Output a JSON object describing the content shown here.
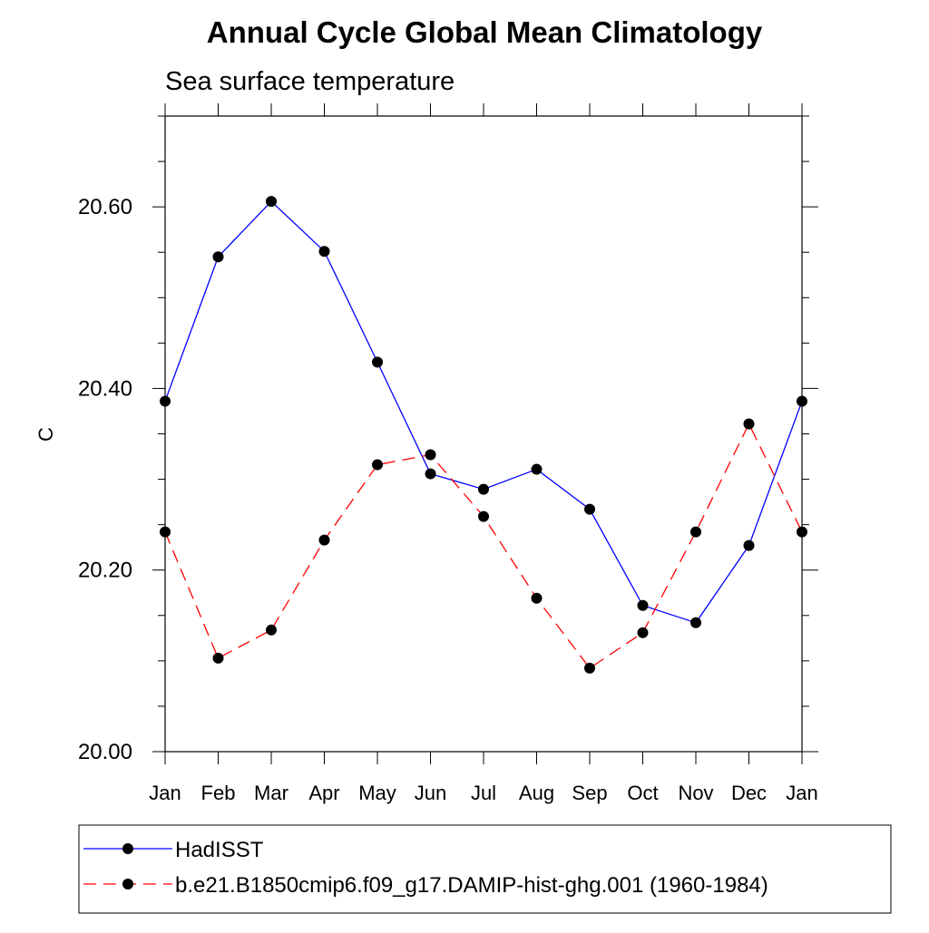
{
  "chart_data": {
    "type": "line",
    "title": "Annual Cycle Global Mean Climatology",
    "subtitle": "Sea surface temperature",
    "xlabel": "",
    "ylabel": "C",
    "categories": [
      "Jan",
      "Feb",
      "Mar",
      "Apr",
      "May",
      "Jun",
      "Jul",
      "Aug",
      "Sep",
      "Oct",
      "Nov",
      "Dec",
      "Jan"
    ],
    "ylim": [
      20.0,
      20.7
    ],
    "yticks": [
      20.0,
      20.2,
      20.4,
      20.6
    ],
    "ytick_labels": [
      "20.00",
      "20.20",
      "20.40",
      "20.60"
    ],
    "yminor_step": 0.05,
    "grid": false,
    "legend_position": "bottom",
    "series": [
      {
        "name": "HadISST",
        "color": "#0000ff",
        "dash": "solid",
        "marker": "filled-circle",
        "values": [
          20.386,
          20.545,
          20.606,
          20.551,
          20.429,
          20.306,
          20.289,
          20.311,
          20.267,
          20.161,
          20.142,
          20.227,
          20.386
        ]
      },
      {
        "name": "b.e21.B1850cmip6.f09_g17.DAMIP-hist-ghg.001 (1960-1984)",
        "color": "#ff0000",
        "dash": "dashed",
        "marker": "filled-circle",
        "values": [
          20.242,
          20.103,
          20.134,
          20.233,
          20.316,
          20.327,
          20.259,
          20.169,
          20.092,
          20.131,
          20.242,
          20.361,
          20.242
        ]
      }
    ]
  }
}
